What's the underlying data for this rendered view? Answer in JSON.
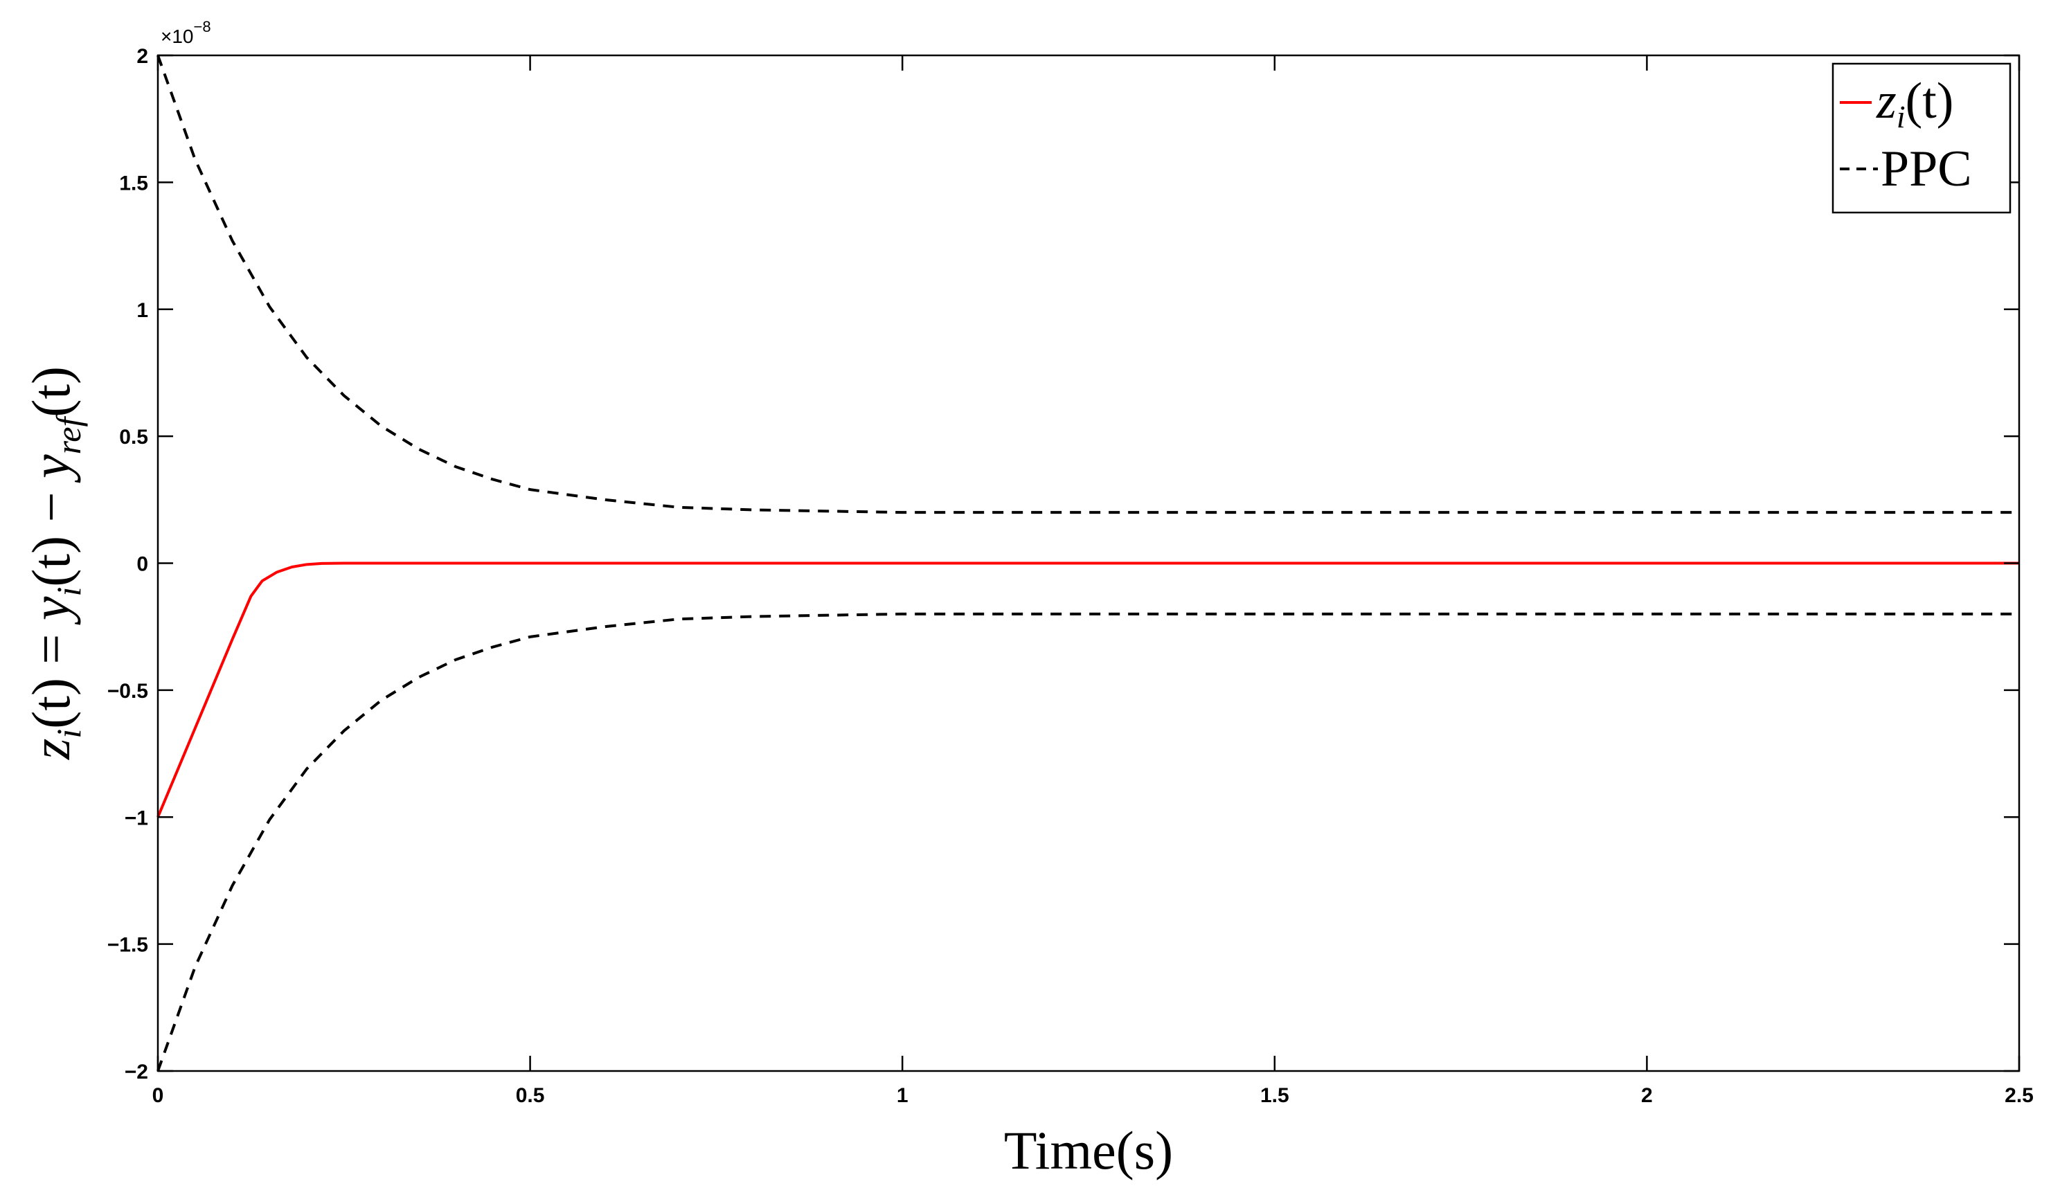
{
  "chart_data": {
    "type": "line",
    "xlabel": "Time(s)",
    "ylabel_parts": {
      "z": "z",
      "i": "i",
      "t_open": "(t) = ",
      "y": "y",
      "minus": "(t) − ",
      "ref": "ref",
      "t_close": "(t)"
    },
    "y_exponent_prefix": "×10",
    "y_exponent": "−8",
    "xlim": [
      0,
      2.5
    ],
    "ylim": [
      -2,
      2
    ],
    "x_ticks": [
      0,
      0.5,
      1,
      1.5,
      2,
      2.5
    ],
    "x_tick_labels": [
      "0",
      "0.5",
      "1",
      "1.5",
      "2",
      "2.5"
    ],
    "y_ticks": [
      2,
      1.5,
      1,
      0.5,
      0,
      -0.5,
      -1,
      -1.5,
      -2
    ],
    "y_tick_labels": [
      "2",
      "1.5",
      "1",
      "0.5",
      "0",
      "−0.5",
      "−1",
      "−1.5",
      "−2"
    ],
    "grid": false,
    "legend_position": "top-right",
    "legend": {
      "z_symbol": "z",
      "z_subscript": "i",
      "z_suffix": "(t)",
      "ppc_label": "PPC"
    },
    "series": [
      {
        "label_ref": "z",
        "color": "#ff0000",
        "style": "solid",
        "x": [
          0,
          0.05,
          0.1,
          0.125,
          0.14,
          0.16,
          0.18,
          0.2,
          0.22,
          0.25,
          0.3,
          0.5,
          1,
          1.5,
          2,
          2.5
        ],
        "y": [
          -1,
          -0.65,
          -0.3,
          -0.13,
          -0.07,
          -0.035,
          -0.015,
          -0.005,
          -0.001,
          0,
          0,
          0,
          0,
          0,
          0,
          0
        ]
      },
      {
        "label_ref": "ppc_upper",
        "color": "#000000",
        "style": "dashed",
        "x": [
          0,
          0.05,
          0.1,
          0.15,
          0.2,
          0.25,
          0.3,
          0.35,
          0.4,
          0.45,
          0.5,
          0.6,
          0.7,
          0.8,
          1,
          1.5,
          2,
          2.5
        ],
        "y": [
          2,
          1.59,
          1.27,
          1.01,
          0.81,
          0.66,
          0.54,
          0.45,
          0.38,
          0.33,
          0.29,
          0.25,
          0.22,
          0.21,
          0.2,
          0.2,
          0.2,
          0.2
        ]
      },
      {
        "label_ref": "ppc_lower",
        "color": "#000000",
        "style": "dashed",
        "x": [
          0,
          0.05,
          0.1,
          0.15,
          0.2,
          0.25,
          0.3,
          0.35,
          0.4,
          0.45,
          0.5,
          0.6,
          0.7,
          0.8,
          1,
          1.5,
          2,
          2.5
        ],
        "y": [
          -2,
          -1.59,
          -1.27,
          -1.01,
          -0.81,
          -0.66,
          -0.54,
          -0.45,
          -0.38,
          -0.33,
          -0.29,
          -0.25,
          -0.22,
          -0.21,
          -0.2,
          -0.2,
          -0.2,
          -0.2
        ]
      }
    ]
  }
}
